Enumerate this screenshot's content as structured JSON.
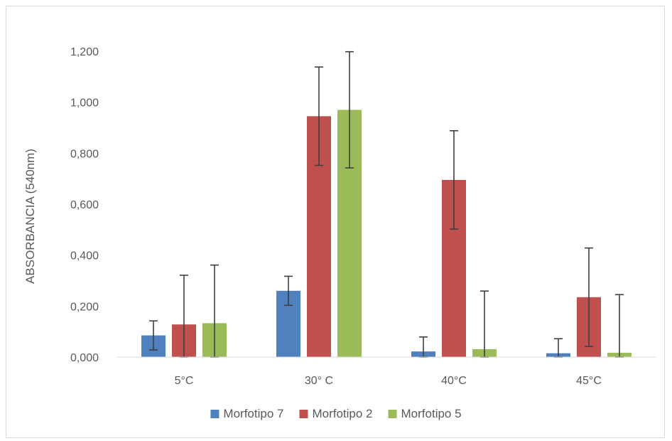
{
  "chart_data": {
    "type": "bar",
    "ylabel": "ABSORBANCIA (540nm)",
    "xlabel": "",
    "title": "",
    "categories": [
      "5°C",
      "30° C",
      "40°C",
      "45°C"
    ],
    "ylim": [
      0,
      1.2
    ],
    "yticks": [
      "0,000",
      "0,200",
      "0,400",
      "0,600",
      "0,800",
      "1,000",
      "1,200"
    ],
    "ytick_values": [
      0,
      0.2,
      0.4,
      0.6,
      0.8,
      1.0,
      1.2
    ],
    "grid": false,
    "legend_position": "bottom",
    "series": [
      {
        "name": "Morfotipo 7",
        "color": "#4e81bd",
        "values": [
          0.085,
          0.26,
          0.022,
          0.015
        ],
        "errors": [
          0.057,
          0.057,
          0.057,
          0.057
        ]
      },
      {
        "name": "Morfotipo 2",
        "color": "#c0504d",
        "values": [
          0.128,
          0.945,
          0.695,
          0.235
        ],
        "errors": [
          0.193,
          0.193,
          0.193,
          0.193
        ]
      },
      {
        "name": "Morfotipo 5",
        "color": "#9bbb59",
        "values": [
          0.133,
          0.97,
          0.031,
          0.017
        ],
        "errors": [
          0.228,
          0.228,
          0.228,
          0.228
        ]
      }
    ]
  }
}
